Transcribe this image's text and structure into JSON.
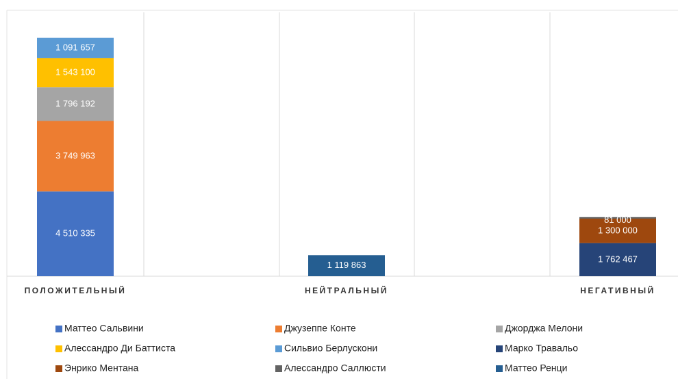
{
  "chart_data": {
    "type": "stacked_bar",
    "categories": [
      "ПОЛОЖИТЕЛЬНЫЙ",
      "НЕЙТРАЛЬНЫЙ",
      "НЕГАТИВНЫЙ"
    ],
    "series": [
      {
        "name": "Маттео Сальвини",
        "color": "#4472c4",
        "values": [
          4510335,
          null,
          null
        ],
        "value_labels": [
          "4 510 335",
          null,
          null
        ]
      },
      {
        "name": "Джузеппе Конте",
        "color": "#ed7d31",
        "values": [
          3749963,
          null,
          null
        ],
        "value_labels": [
          "3 749 963",
          null,
          null
        ]
      },
      {
        "name": "Джорджа Мелони",
        "color": "#a5a5a5",
        "values": [
          1796192,
          null,
          null
        ],
        "value_labels": [
          "1 796 192",
          null,
          null
        ]
      },
      {
        "name": "Алессандро Ди Баттиста",
        "color": "#ffc000",
        "values": [
          1543100,
          null,
          null
        ],
        "value_labels": [
          "1 543 100",
          null,
          null
        ]
      },
      {
        "name": "Сильвио Берлускони",
        "color": "#5b9bd5",
        "values": [
          1091657,
          null,
          null
        ],
        "value_labels": [
          "1 091 657",
          null,
          null
        ]
      },
      {
        "name": "Марко Травальо",
        "color": "#264478",
        "values": [
          null,
          null,
          1762467
        ],
        "value_labels": [
          null,
          null,
          "1 762 467"
        ]
      },
      {
        "name": "Энрико Ментана",
        "color": "#9e480e",
        "values": [
          null,
          null,
          1300000
        ],
        "value_labels": [
          null,
          null,
          "1 300 000"
        ]
      },
      {
        "name": "Алессандро Саллюсти",
        "color": "#636363",
        "values": [
          null,
          null,
          81000
        ],
        "value_labels": [
          null,
          null,
          "81 000"
        ]
      },
      {
        "name": "Маттео Ренци",
        "color": "#255e91",
        "values": [
          null,
          1119863,
          null
        ],
        "value_labels": [
          null,
          "1 119 863",
          null
        ]
      }
    ]
  }
}
